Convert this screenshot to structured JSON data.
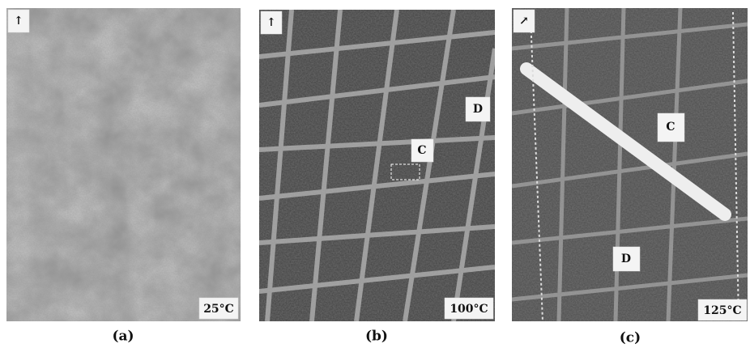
{
  "panels": [
    {
      "caption": "(a)",
      "temperature": "25°C"
    },
    {
      "caption": "(b)",
      "temperature": "100°C",
      "annotations": [
        "C",
        "D"
      ]
    },
    {
      "caption": "(c)",
      "temperature": "125°C",
      "annotations": [
        "C",
        "D"
      ]
    }
  ]
}
